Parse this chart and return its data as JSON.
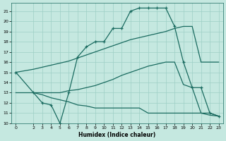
{
  "xlabel": "Humidex (Indice chaleur)",
  "bg_color": "#c5e8e0",
  "line_color": "#1a6b60",
  "grid_color": "#9ecfc5",
  "xlim": [
    -0.5,
    23.5
  ],
  "ylim": [
    10,
    21.8
  ],
  "xticks": [
    0,
    2,
    3,
    4,
    5,
    6,
    7,
    8,
    9,
    10,
    11,
    12,
    13,
    14,
    15,
    16,
    17,
    18,
    19,
    20,
    21,
    22,
    23
  ],
  "yticks": [
    10,
    11,
    12,
    13,
    14,
    15,
    16,
    17,
    18,
    19,
    20,
    21
  ],
  "line1_x": [
    0,
    2,
    3,
    4,
    5,
    6,
    7,
    8,
    9,
    10,
    11,
    12,
    13,
    14,
    15,
    16,
    17,
    18,
    19,
    20,
    21,
    22,
    23
  ],
  "line1_y": [
    15.0,
    15.3,
    15.5,
    15.7,
    15.9,
    16.1,
    16.4,
    16.7,
    17.0,
    17.3,
    17.6,
    17.9,
    18.2,
    18.4,
    18.6,
    18.8,
    19.0,
    19.3,
    19.5,
    19.5,
    16.0,
    16.0,
    16.0
  ],
  "line2_x": [
    2,
    3,
    4,
    5,
    6,
    7,
    8,
    9,
    10,
    11,
    12,
    13,
    14,
    15,
    16,
    17,
    18,
    19,
    20,
    21,
    22,
    23
  ],
  "line2_y": [
    13.0,
    12.8,
    12.5,
    12.3,
    12.1,
    11.8,
    11.7,
    11.5,
    11.5,
    11.5,
    11.5,
    11.5,
    11.5,
    11.0,
    11.0,
    11.0,
    11.0,
    11.0,
    11.0,
    11.0,
    11.0,
    10.7
  ],
  "line3_x": [
    0,
    2,
    3,
    4,
    5,
    6,
    7,
    8,
    9,
    10,
    11,
    12,
    13,
    14,
    15,
    16,
    17,
    18,
    19,
    20,
    21,
    22,
    23
  ],
  "line3_y": [
    15.0,
    13.0,
    12.0,
    11.8,
    10.0,
    13.0,
    16.5,
    17.5,
    18.0,
    18.0,
    19.3,
    19.3,
    21.0,
    21.3,
    21.3,
    21.3,
    21.3,
    19.5,
    16.0,
    13.5,
    13.5,
    11.0,
    10.7
  ],
  "line4_x": [
    0,
    2,
    3,
    4,
    5,
    6,
    7,
    8,
    9,
    10,
    11,
    12,
    13,
    14,
    15,
    16,
    17,
    18,
    19,
    20,
    21,
    22,
    23
  ],
  "line4_y": [
    13.0,
    13.0,
    13.0,
    13.0,
    13.0,
    13.2,
    13.3,
    13.5,
    13.7,
    14.0,
    14.3,
    14.7,
    15.0,
    15.3,
    15.6,
    15.8,
    16.0,
    16.0,
    13.8,
    13.5,
    11.0,
    10.8,
    10.7
  ]
}
